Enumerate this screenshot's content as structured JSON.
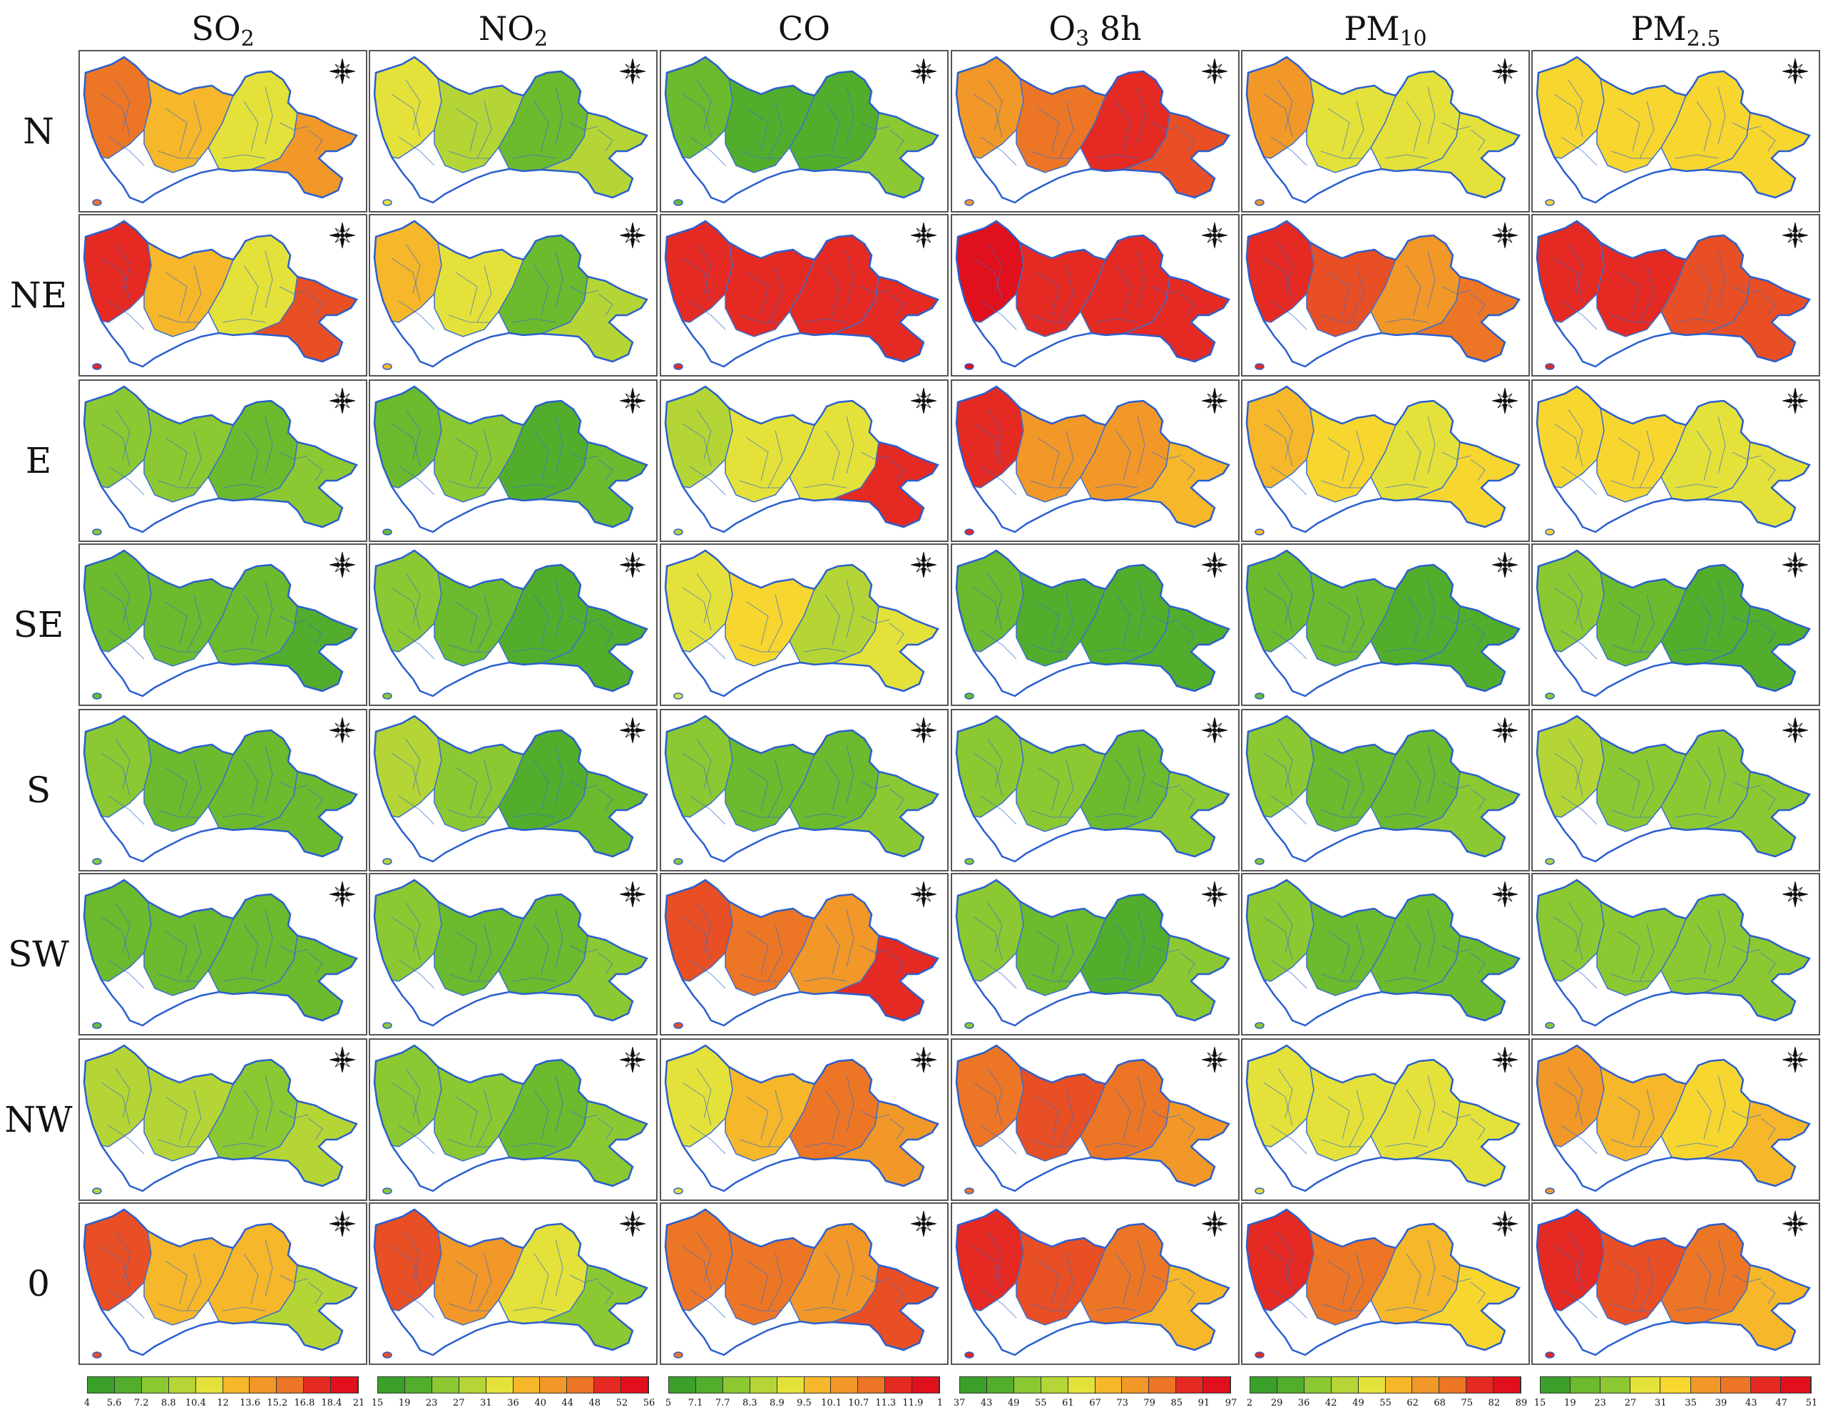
{
  "columns": [
    {
      "base": "SO",
      "sub": "2"
    },
    {
      "base": "NO",
      "sub": "2"
    },
    {
      "base": "CO",
      "sub": ""
    },
    {
      "base": "O",
      "sub": "3",
      "suffix": " 8h"
    },
    {
      "base": "PM",
      "sub": "10"
    },
    {
      "base": "PM",
      "sub": "2.5"
    }
  ],
  "rows": [
    "N",
    "NE",
    "E",
    "SE",
    "S",
    "SW",
    "NW",
    "0"
  ],
  "scale_colors": [
    "#3aa02a",
    "#52ad2c",
    "#6cba2e",
    "#8cc832",
    "#b5d536",
    "#e4e23a",
    "#f7d630",
    "#f6b72a",
    "#f19828",
    "#ec7626",
    "#e84f24",
    "#e42a22",
    "#e0101c"
  ],
  "panel_levels": [
    [
      [
        0.78,
        0.62,
        0.45,
        0.7
      ],
      [
        0.45,
        0.32,
        0.18,
        0.3
      ],
      [
        0.15,
        0.12,
        0.06,
        0.22
      ],
      [
        0.7,
        0.78,
        0.88,
        0.82
      ],
      [
        0.68,
        0.45,
        0.38,
        0.42
      ],
      [
        0.48,
        0.5,
        0.52,
        0.52
      ]
    ],
    [
      [
        0.9,
        0.55,
        0.45,
        0.8
      ],
      [
        0.62,
        0.38,
        0.2,
        0.3
      ],
      [
        0.95,
        0.92,
        0.88,
        0.92
      ],
      [
        0.96,
        0.95,
        0.93,
        0.95
      ],
      [
        0.92,
        0.8,
        0.7,
        0.75
      ],
      [
        0.95,
        0.88,
        0.82,
        0.85
      ]
    ],
    [
      [
        0.22,
        0.25,
        0.2,
        0.25
      ],
      [
        0.2,
        0.22,
        0.12,
        0.2
      ],
      [
        0.3,
        0.4,
        0.38,
        0.92
      ],
      [
        0.88,
        0.7,
        0.65,
        0.58
      ],
      [
        0.58,
        0.5,
        0.45,
        0.48
      ],
      [
        0.5,
        0.48,
        0.42,
        0.45
      ]
    ],
    [
      [
        0.2,
        0.18,
        0.15,
        0.12
      ],
      [
        0.22,
        0.18,
        0.12,
        0.1
      ],
      [
        0.42,
        0.5,
        0.32,
        0.4
      ],
      [
        0.15,
        0.12,
        0.08,
        0.1
      ],
      [
        0.2,
        0.15,
        0.1,
        0.12
      ],
      [
        0.22,
        0.15,
        0.1,
        0.12
      ]
    ],
    [
      [
        0.22,
        0.2,
        0.15,
        0.2
      ],
      [
        0.3,
        0.25,
        0.12,
        0.15
      ],
      [
        0.22,
        0.2,
        0.15,
        0.28
      ],
      [
        0.25,
        0.22,
        0.18,
        0.25
      ],
      [
        0.25,
        0.2,
        0.15,
        0.22
      ],
      [
        0.32,
        0.28,
        0.25,
        0.28
      ]
    ],
    [
      [
        0.2,
        0.18,
        0.16,
        0.2
      ],
      [
        0.22,
        0.2,
        0.18,
        0.22
      ],
      [
        0.85,
        0.72,
        0.68,
        0.92
      ],
      [
        0.28,
        0.2,
        0.1,
        0.22
      ],
      [
        0.22,
        0.18,
        0.16,
        0.2
      ],
      [
        0.28,
        0.25,
        0.22,
        0.25
      ]
    ],
    [
      [
        0.35,
        0.3,
        0.28,
        0.32
      ],
      [
        0.25,
        0.22,
        0.2,
        0.22
      ],
      [
        0.45,
        0.55,
        0.72,
        0.65
      ],
      [
        0.78,
        0.8,
        0.72,
        0.68
      ],
      [
        0.45,
        0.42,
        0.4,
        0.45
      ],
      [
        0.65,
        0.58,
        0.52,
        0.58
      ]
    ],
    [
      [
        0.8,
        0.62,
        0.55,
        0.3
      ],
      [
        0.82,
        0.65,
        0.4,
        0.22
      ],
      [
        0.78,
        0.72,
        0.7,
        0.82
      ],
      [
        0.88,
        0.82,
        0.78,
        0.62
      ],
      [
        0.95,
        0.78,
        0.6,
        0.48
      ],
      [
        0.95,
        0.85,
        0.72,
        0.6
      ]
    ]
  ],
  "legends": [
    {
      "ticks": [
        "4",
        "5.6",
        "7.2",
        "8.8",
        "10.4",
        "12",
        "13.6",
        "15.2",
        "16.8",
        "18.4",
        "21"
      ]
    },
    {
      "ticks": [
        "15",
        "19",
        "23",
        "27",
        "31",
        "36",
        "40",
        "44",
        "48",
        "52",
        "56"
      ]
    },
    {
      "ticks": [
        "5",
        "7.1",
        "7.7",
        "8.3",
        "8.9",
        "9.5",
        "10.1",
        "10.7",
        "11.3",
        "11.9",
        "1"
      ]
    },
    {
      "ticks": [
        "37",
        "43",
        "49",
        "55",
        "61",
        "67",
        "73",
        "79",
        "85",
        "91",
        "97"
      ]
    },
    {
      "ticks": [
        "2",
        "29",
        "36",
        "42",
        "49",
        "55",
        "62",
        "68",
        "75",
        "82",
        "89"
      ]
    },
    {
      "ticks": [
        "15",
        "19",
        "23",
        "27",
        "31",
        "35",
        "39",
        "43",
        "47",
        "51"
      ]
    }
  ]
}
